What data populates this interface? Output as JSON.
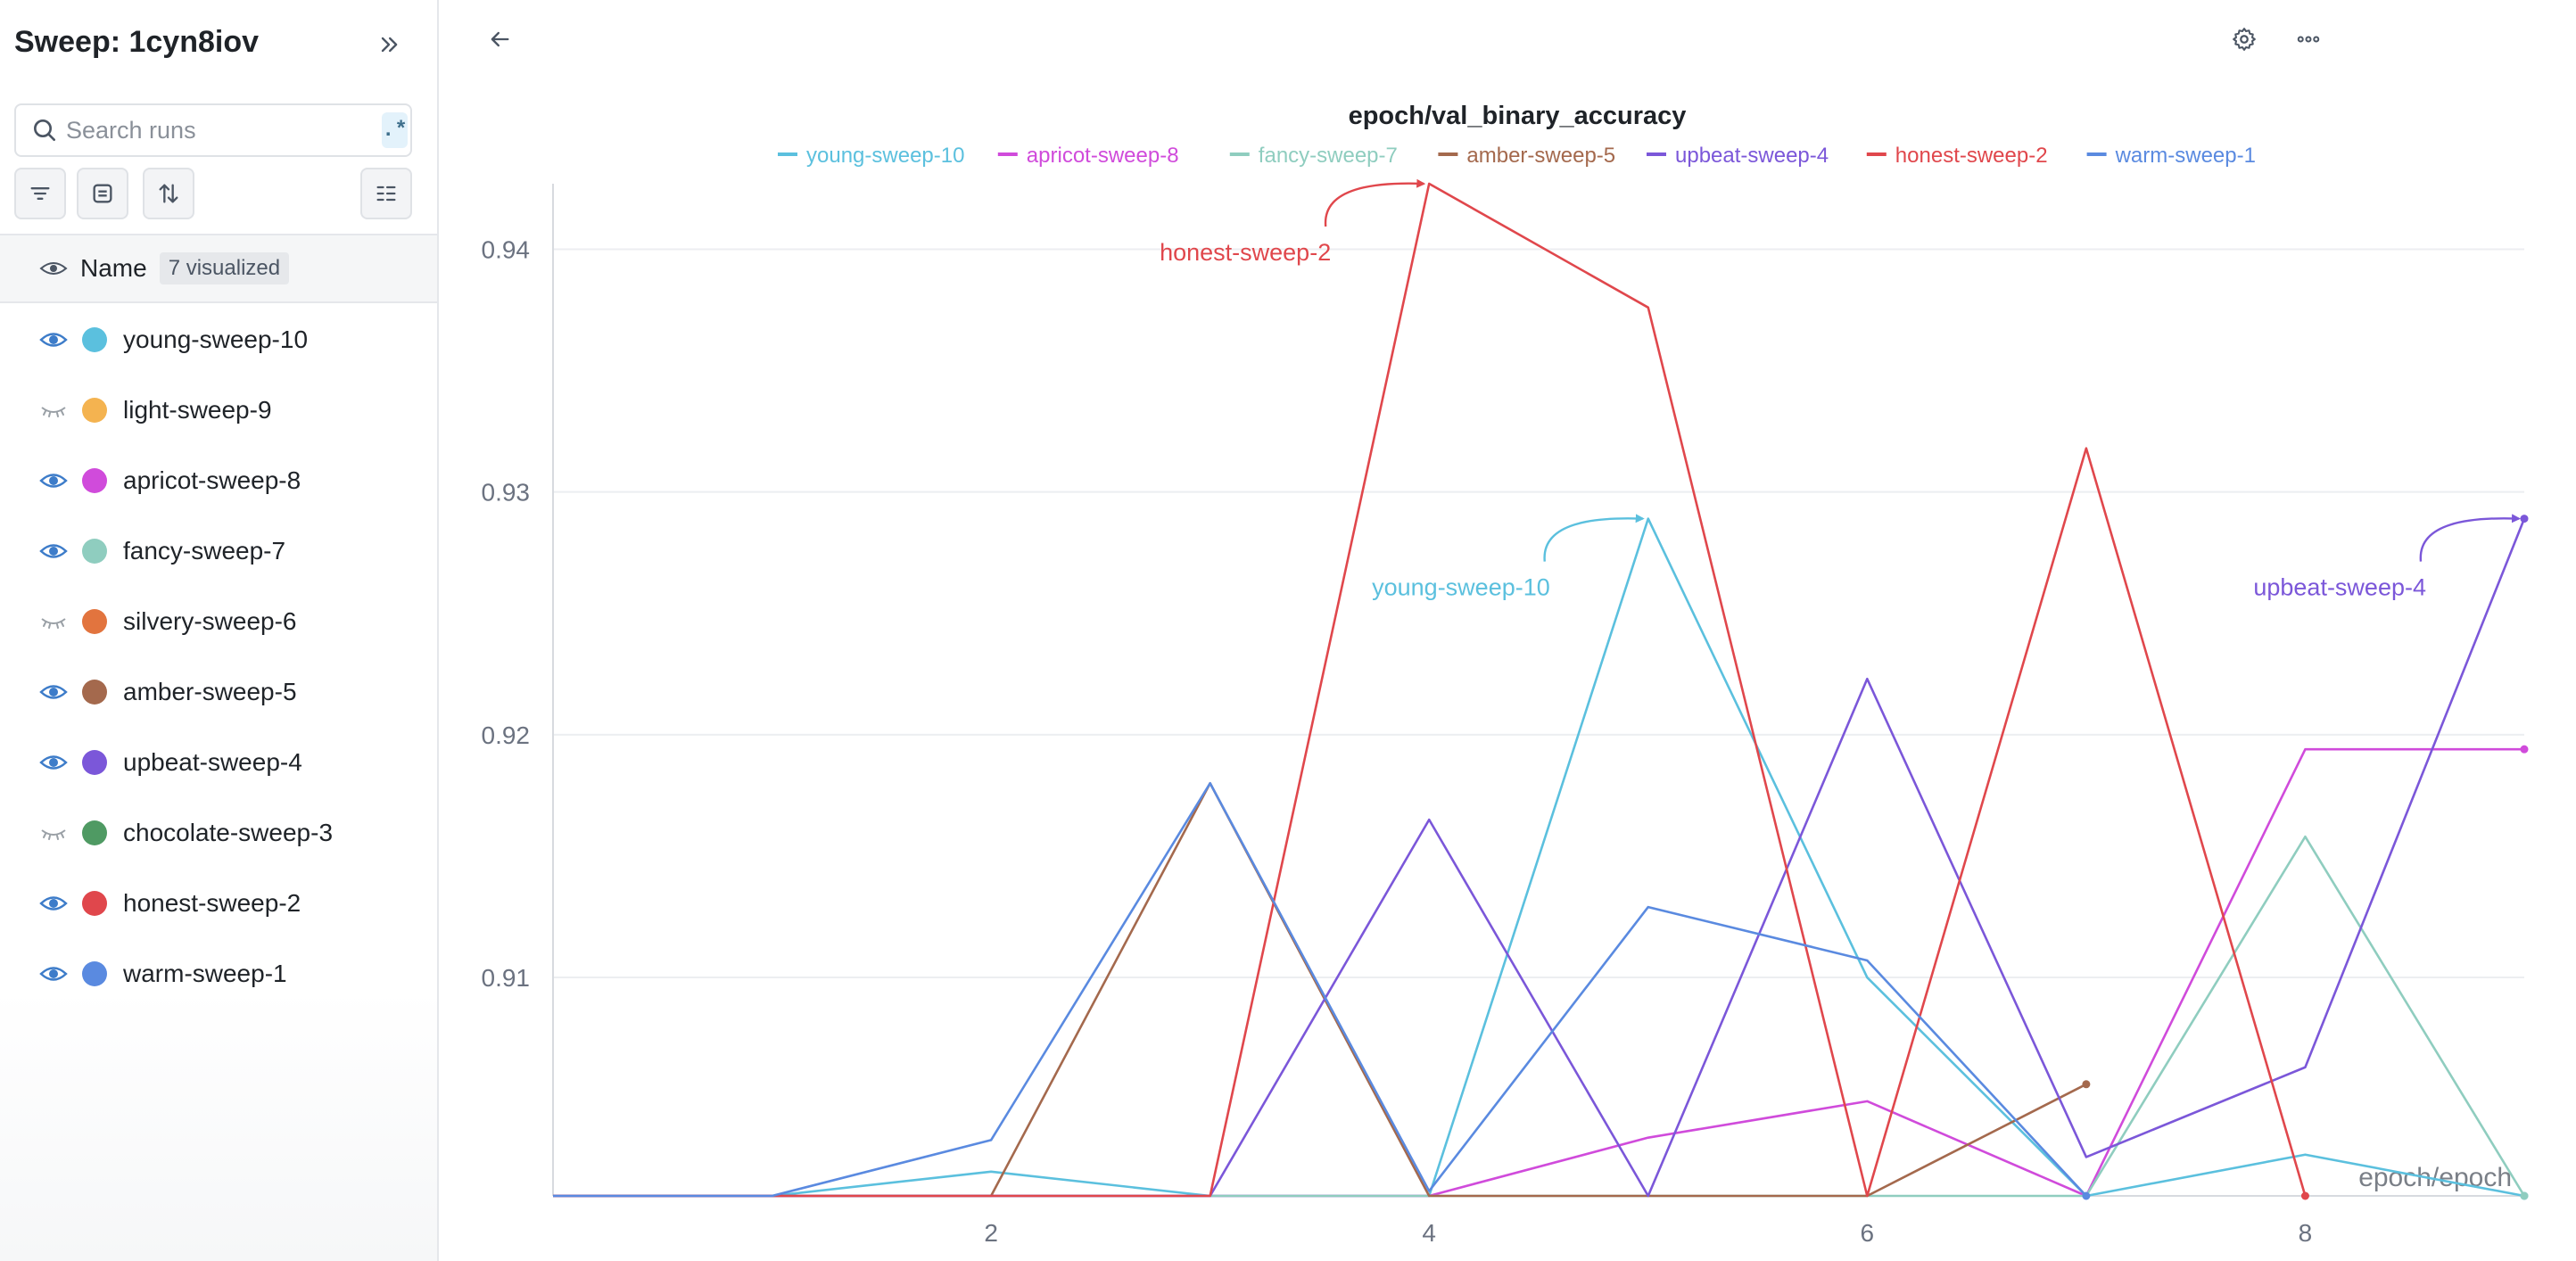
{
  "sidebar": {
    "title": "Sweep: 1cyn8iov",
    "search": {
      "placeholder": "Search runs",
      "regex_label": ".*"
    },
    "header": {
      "name_label": "Name",
      "visualized_badge": "7 visualized"
    },
    "runs": [
      {
        "name": "young-sweep-10",
        "color": "#5bc0de",
        "visible": true
      },
      {
        "name": "light-sweep-9",
        "color": "#f4b350",
        "visible": false
      },
      {
        "name": "apricot-sweep-8",
        "color": "#d04bdb",
        "visible": true
      },
      {
        "name": "fancy-sweep-7",
        "color": "#8fcdbf",
        "visible": true
      },
      {
        "name": "silvery-sweep-6",
        "color": "#e2743e",
        "visible": false
      },
      {
        "name": "amber-sweep-5",
        "color": "#a4694d",
        "visible": true
      },
      {
        "name": "upbeat-sweep-4",
        "color": "#7b57d9",
        "visible": true
      },
      {
        "name": "chocolate-sweep-3",
        "color": "#4f9a63",
        "visible": false
      },
      {
        "name": "honest-sweep-2",
        "color": "#e0474c",
        "visible": true
      },
      {
        "name": "warm-sweep-1",
        "color": "#5a8ae0",
        "visible": true
      }
    ]
  },
  "toolbar": {
    "icons": [
      "back-arrow-icon",
      "gear-icon",
      "more-horizontal-icon"
    ]
  },
  "chart_data": {
    "type": "line",
    "title": "epoch/val_binary_accuracy",
    "xlabel": "epoch/epoch",
    "ylabel": "",
    "xlim": [
      0,
      9
    ],
    "ylim": [
      0.901,
      0.9427
    ],
    "x_ticks": [
      2,
      4,
      6,
      8
    ],
    "y_ticks": [
      0.91,
      0.92,
      0.93,
      0.94
    ],
    "grid": "horizontal",
    "legend_position": "top-center",
    "series": [
      {
        "name": "young-sweep-10",
        "color": "#5bc0de",
        "x": [
          0,
          1,
          2,
          3,
          4,
          5,
          6,
          7,
          8,
          9
        ],
        "y": [
          0.901,
          0.901,
          0.902,
          0.901,
          0.901,
          0.9289,
          0.91,
          0.901,
          0.9027,
          0.901
        ]
      },
      {
        "name": "apricot-sweep-8",
        "color": "#d04bdb",
        "x": [
          0,
          1,
          2,
          3,
          4,
          5,
          6,
          7,
          8,
          9
        ],
        "y": [
          0.901,
          0.901,
          0.901,
          0.901,
          0.901,
          0.9034,
          0.9049,
          0.901,
          0.9194,
          0.9194
        ]
      },
      {
        "name": "fancy-sweep-7",
        "color": "#8fcdbf",
        "x": [
          0,
          1,
          2,
          3,
          4,
          5,
          6,
          7,
          8,
          9
        ],
        "y": [
          0.901,
          0.901,
          0.901,
          0.901,
          0.901,
          0.901,
          0.901,
          0.901,
          0.9158,
          0.901
        ]
      },
      {
        "name": "amber-sweep-5",
        "color": "#a4694d",
        "x": [
          0,
          1,
          2,
          3,
          4,
          5,
          6,
          7
        ],
        "y": [
          0.901,
          0.901,
          0.901,
          0.918,
          0.901,
          0.901,
          0.901,
          0.9056
        ]
      },
      {
        "name": "upbeat-sweep-4",
        "color": "#7b57d9",
        "x": [
          0,
          1,
          2,
          3,
          4,
          5,
          6,
          7,
          8,
          9
        ],
        "y": [
          0.901,
          0.901,
          0.901,
          0.901,
          0.9165,
          0.901,
          0.9223,
          0.9026,
          0.9063,
          0.9289
        ]
      },
      {
        "name": "honest-sweep-2",
        "color": "#e0474c",
        "x": [
          0,
          1,
          2,
          3,
          4,
          5,
          6,
          7,
          8
        ],
        "y": [
          0.901,
          0.901,
          0.901,
          0.901,
          0.9427,
          0.9376,
          0.901,
          0.9318,
          0.901
        ]
      },
      {
        "name": "warm-sweep-1",
        "color": "#5a8ae0",
        "x": [
          0,
          1,
          2,
          3,
          4,
          5,
          6,
          7
        ],
        "y": [
          0.901,
          0.901,
          0.9033,
          0.918,
          0.9012,
          0.9129,
          0.9107,
          0.901
        ]
      }
    ],
    "annotations": [
      {
        "text": "honest-sweep-2",
        "series": "honest-sweep-2",
        "x": 4,
        "y": 0.9427
      },
      {
        "text": "young-sweep-10",
        "series": "young-sweep-10",
        "x": 5,
        "y": 0.9289
      },
      {
        "text": "upbeat-sweep-4",
        "series": "upbeat-sweep-4",
        "x": 9,
        "y": 0.9289
      }
    ]
  }
}
